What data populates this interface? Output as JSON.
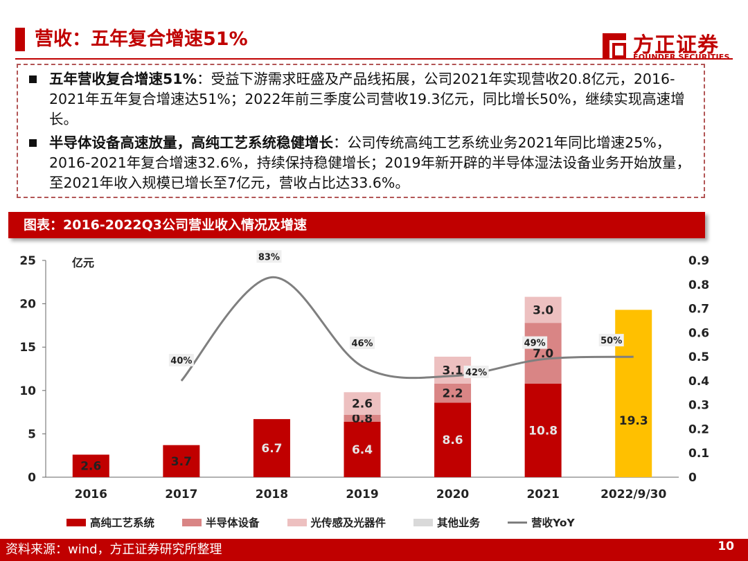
{
  "page": {
    "title": "营收：五年复合增速51%",
    "logo_cn": "方正证券",
    "logo_en": "FOUNDER SECURITIES",
    "page_number": "10",
    "source": "资料来源：wind，方正证券研究所整理"
  },
  "summary": {
    "b1_bold": "五年营收复合增速51%",
    "b1_text": "：受益下游需求旺盛及产品线拓展，公司2021年实现营收20.8亿元，2016-2021年五年复合增速达51%；2022年前三季度公司营收19.3亿元，同比增长50%，继续实现高速增长。",
    "b2_bold": "半导体设备高速放量，高纯工艺系统稳健增长",
    "b2_text": "：公司传统高纯工艺系统业务2021年同比增速25%，2016-2021年复合增速32.6%，持续保持稳健增长；2019年新开辟的半导体湿法设备业务开始放量，至2021年收入规模已增长至7亿元，营收占比达33.6%。"
  },
  "figure": {
    "label": "图表：2016-2022Q3公司营业收入情况及增速"
  },
  "colors": {
    "brand": "#c00000",
    "hp": "#c00000",
    "semi": "#d98585",
    "opt": "#edc0c0",
    "other": "#d9d9d9",
    "ytd": "#ffc000",
    "line": "#7f7f7f"
  },
  "chart_data": {
    "type": "bar",
    "stacked": true,
    "unit_label": "亿元",
    "categories": [
      "2016",
      "2017",
      "2018",
      "2019",
      "2020",
      "2021",
      "2022/9/30"
    ],
    "series": [
      {
        "name": "高纯工艺系统",
        "values": [
          2.6,
          3.7,
          6.7,
          6.4,
          8.6,
          10.8,
          null
        ],
        "color_key": "hp"
      },
      {
        "name": "半导体设备",
        "values": [
          null,
          null,
          null,
          0.8,
          2.2,
          7.0,
          null
        ],
        "color_key": "semi"
      },
      {
        "name": "光传感及光器件",
        "values": [
          null,
          null,
          null,
          2.6,
          3.1,
          3.0,
          null
        ],
        "color_key": "opt"
      },
      {
        "name": "其他业务",
        "values": [
          null,
          null,
          null,
          null,
          null,
          null,
          null
        ],
        "color_key": "other"
      }
    ],
    "ytd_total": {
      "category": "2022/9/30",
      "value": 19.3
    },
    "line": {
      "name": "营收YoY",
      "axis": "right",
      "points": [
        {
          "category": "2017",
          "value": 0.4,
          "label": "40%"
        },
        {
          "category": "2018",
          "value": 0.83,
          "label": "83%"
        },
        {
          "category": "2019",
          "value": 0.46,
          "label": "46%"
        },
        {
          "category": "2020",
          "value": 0.42,
          "label": "42%"
        },
        {
          "category": "2021",
          "value": 0.49,
          "label": "49%"
        },
        {
          "category": "2022/9/30",
          "value": 0.5,
          "label": "50%"
        }
      ]
    },
    "y_left": {
      "min": 0,
      "max": 25,
      "ticks": [
        0,
        5,
        10,
        15,
        20,
        25
      ]
    },
    "y_right": {
      "min": 0,
      "max": 0.9,
      "ticks": [
        0,
        0.1,
        0.2,
        0.3,
        0.4,
        0.5,
        0.6,
        0.7,
        0.8,
        0.9
      ]
    },
    "legend": [
      "高纯工艺系统",
      "半导体设备",
      "光传感及光器件",
      "其他业务",
      "营收YoY"
    ],
    "legend_position": "bottom"
  }
}
